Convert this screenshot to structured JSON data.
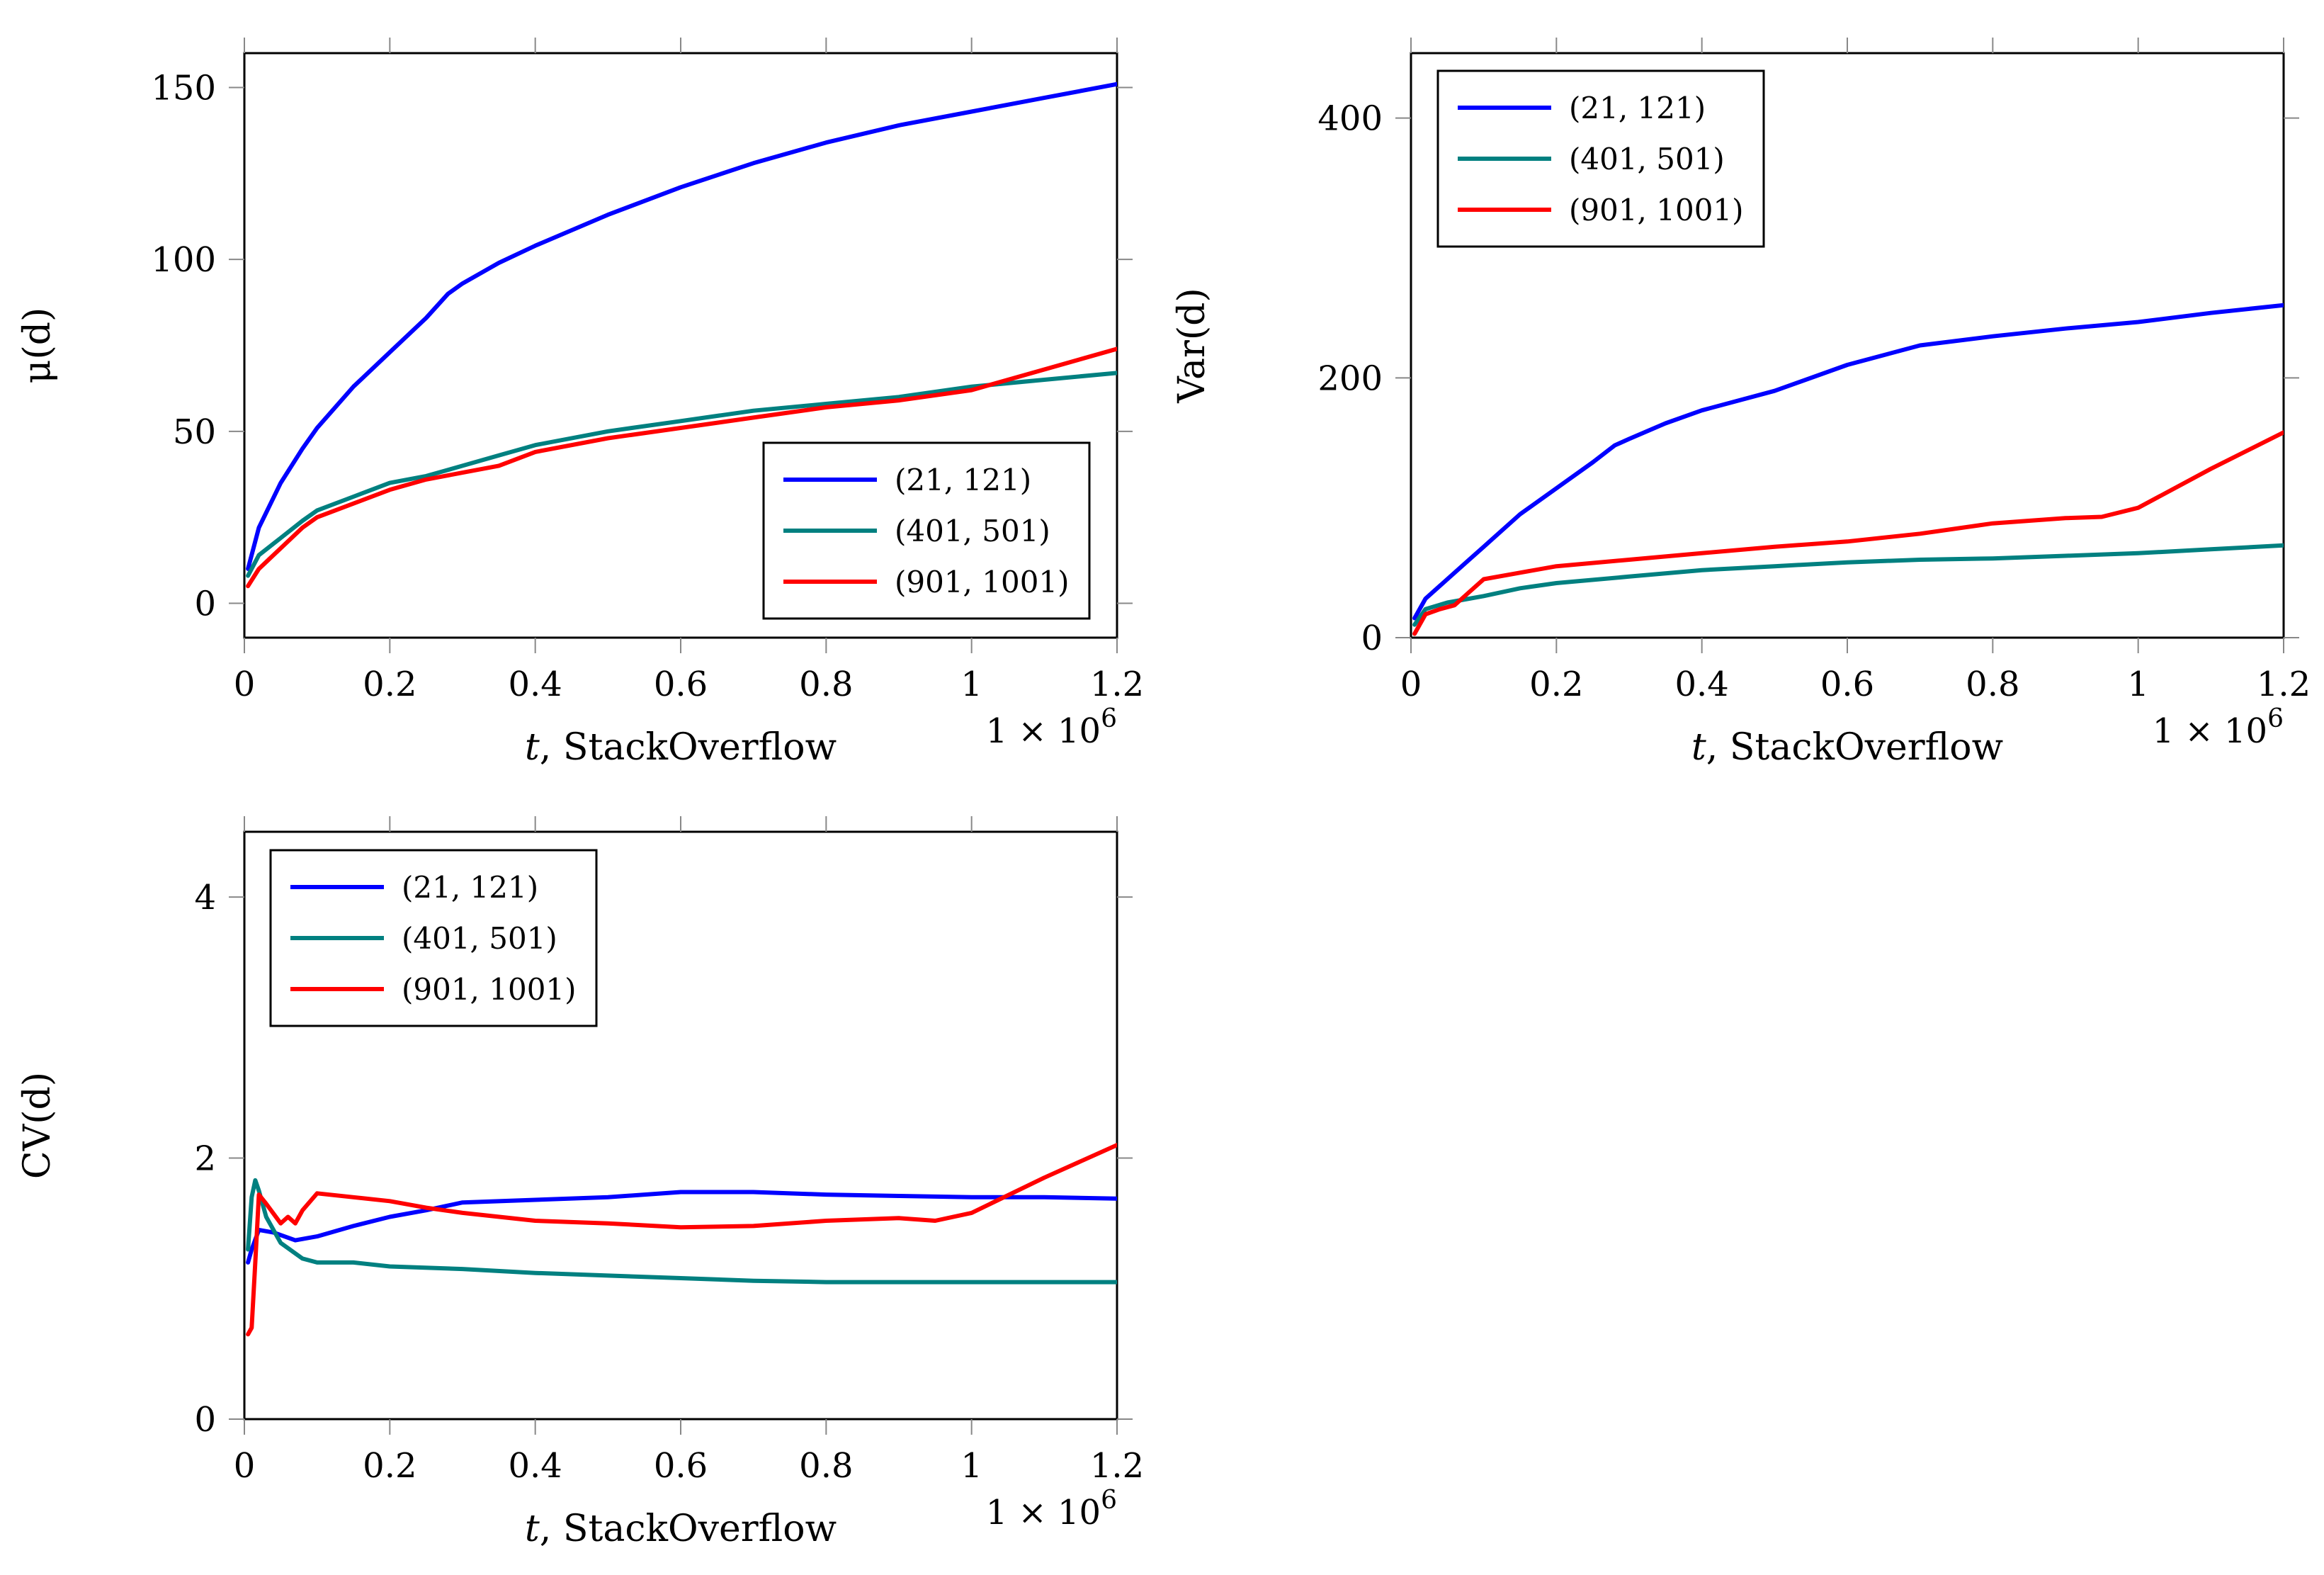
{
  "chart_data": [
    {
      "type": "line",
      "title": "",
      "xlabel": "t, StackOverflow",
      "ylabel": "μ(d)",
      "x_multiplier": "1 × 10^6",
      "xlim": [
        0,
        1.2
      ],
      "ylim": [
        -10,
        160
      ],
      "xticks": [
        0,
        0.2,
        0.4,
        0.6,
        0.8,
        1,
        1.2
      ],
      "xtick_labels": [
        "0",
        "0.2",
        "0.4",
        "0.6",
        "0.8",
        "1",
        "1.2"
      ],
      "yticks": [
        0,
        50,
        100,
        150
      ],
      "ytick_labels": [
        "0",
        "50",
        "100",
        "150"
      ],
      "legend_position": "bottom-right",
      "series": [
        {
          "name": "(21, 121)",
          "color": "#0000ff",
          "x": [
            0.005,
            0.02,
            0.05,
            0.08,
            0.1,
            0.15,
            0.2,
            0.25,
            0.28,
            0.3,
            0.35,
            0.4,
            0.5,
            0.6,
            0.7,
            0.8,
            0.9,
            1.0,
            1.1,
            1.2
          ],
          "y": [
            10,
            22,
            35,
            45,
            51,
            63,
            73,
            83,
            90,
            93,
            99,
            104,
            113,
            121,
            128,
            134,
            139,
            143,
            147,
            151
          ]
        },
        {
          "name": "(401, 501)",
          "color": "#008080",
          "x": [
            0.005,
            0.02,
            0.05,
            0.08,
            0.1,
            0.15,
            0.2,
            0.25,
            0.3,
            0.35,
            0.4,
            0.5,
            0.6,
            0.7,
            0.8,
            0.9,
            1.0,
            1.1,
            1.2
          ],
          "y": [
            8,
            14,
            19,
            24,
            27,
            31,
            35,
            37,
            40,
            43,
            46,
            50,
            53,
            56,
            58,
            60,
            63,
            65,
            67
          ]
        },
        {
          "name": "(901, 1001)",
          "color": "#ff0000",
          "x": [
            0.005,
            0.02,
            0.05,
            0.08,
            0.1,
            0.15,
            0.2,
            0.25,
            0.3,
            0.35,
            0.4,
            0.5,
            0.6,
            0.7,
            0.8,
            0.9,
            1.0,
            1.1,
            1.2
          ],
          "y": [
            5,
            10,
            16,
            22,
            25,
            29,
            33,
            36,
            38,
            40,
            44,
            48,
            51,
            54,
            57,
            59,
            62,
            68,
            74
          ]
        }
      ]
    },
    {
      "type": "line",
      "title": "",
      "xlabel": "t, StackOverflow",
      "ylabel": "Var(d)",
      "x_multiplier": "1 × 10^6",
      "xlim": [
        0,
        1.2
      ],
      "ylim": [
        0,
        450
      ],
      "xticks": [
        0,
        0.2,
        0.4,
        0.6,
        0.8,
        1,
        1.2
      ],
      "xtick_labels": [
        "0",
        "0.2",
        "0.4",
        "0.6",
        "0.8",
        "1",
        "1.2"
      ],
      "yticks": [
        0,
        200,
        400
      ],
      "ytick_labels": [
        "0",
        "200",
        "400"
      ],
      "legend_position": "top-left",
      "series": [
        {
          "name": "(21, 121)",
          "color": "#0000ff",
          "x": [
            0.005,
            0.02,
            0.05,
            0.08,
            0.1,
            0.15,
            0.2,
            0.25,
            0.28,
            0.3,
            0.35,
            0.4,
            0.5,
            0.6,
            0.7,
            0.8,
            0.9,
            1.0,
            1.1,
            1.2
          ],
          "y": [
            15,
            30,
            45,
            60,
            70,
            95,
            115,
            135,
            148,
            153,
            165,
            175,
            190,
            210,
            225,
            232,
            238,
            243,
            250,
            256
          ]
        },
        {
          "name": "(401, 501)",
          "color": "#008080",
          "x": [
            0.005,
            0.02,
            0.05,
            0.08,
            0.1,
            0.15,
            0.2,
            0.3,
            0.4,
            0.5,
            0.6,
            0.7,
            0.8,
            0.9,
            1.0,
            1.1,
            1.2
          ],
          "y": [
            10,
            22,
            27,
            30,
            32,
            38,
            42,
            47,
            52,
            55,
            58,
            60,
            61,
            63,
            65,
            68,
            71
          ]
        },
        {
          "name": "(901, 1001)",
          "color": "#ff0000",
          "x": [
            0.005,
            0.02,
            0.04,
            0.06,
            0.08,
            0.1,
            0.15,
            0.2,
            0.3,
            0.4,
            0.5,
            0.6,
            0.7,
            0.8,
            0.9,
            0.95,
            1.0,
            1.1,
            1.2
          ],
          "y": [
            3,
            18,
            22,
            25,
            35,
            45,
            50,
            55,
            60,
            65,
            70,
            74,
            80,
            88,
            92,
            93,
            100,
            130,
            158
          ]
        }
      ]
    },
    {
      "type": "line",
      "title": "",
      "xlabel": "t, StackOverflow",
      "ylabel": "CV(d)",
      "x_multiplier": "1 × 10^6",
      "xlim": [
        0,
        1.2
      ],
      "ylim": [
        0,
        4.5
      ],
      "xticks": [
        0,
        0.2,
        0.4,
        0.6,
        0.8,
        1,
        1.2
      ],
      "xtick_labels": [
        "0",
        "0.2",
        "0.4",
        "0.6",
        "0.8",
        "1",
        "1.2"
      ],
      "yticks": [
        0,
        2,
        4
      ],
      "ytick_labels": [
        "0",
        "2",
        "4"
      ],
      "legend_position": "top-left",
      "series": [
        {
          "name": "(21, 121)",
          "color": "#0000ff",
          "x": [
            0.005,
            0.01,
            0.02,
            0.04,
            0.07,
            0.1,
            0.15,
            0.2,
            0.25,
            0.3,
            0.4,
            0.5,
            0.6,
            0.7,
            0.8,
            0.9,
            1.0,
            1.1,
            1.2
          ],
          "y": [
            1.2,
            1.3,
            1.45,
            1.43,
            1.37,
            1.4,
            1.48,
            1.55,
            1.6,
            1.66,
            1.68,
            1.7,
            1.74,
            1.74,
            1.72,
            1.71,
            1.7,
            1.7,
            1.69
          ]
        },
        {
          "name": "(401, 501)",
          "color": "#008080",
          "x": [
            0.005,
            0.01,
            0.015,
            0.02,
            0.03,
            0.05,
            0.08,
            0.1,
            0.15,
            0.2,
            0.3,
            0.4,
            0.5,
            0.6,
            0.7,
            0.8,
            0.9,
            1.0,
            1.1,
            1.2
          ],
          "y": [
            1.3,
            1.7,
            1.83,
            1.75,
            1.55,
            1.35,
            1.23,
            1.2,
            1.2,
            1.17,
            1.15,
            1.12,
            1.1,
            1.08,
            1.06,
            1.05,
            1.05,
            1.05,
            1.05,
            1.05
          ]
        },
        {
          "name": "(901, 1001)",
          "color": "#ff0000",
          "x": [
            0.005,
            0.01,
            0.015,
            0.02,
            0.03,
            0.05,
            0.06,
            0.07,
            0.08,
            0.1,
            0.15,
            0.2,
            0.25,
            0.3,
            0.4,
            0.5,
            0.6,
            0.7,
            0.8,
            0.9,
            0.95,
            1.0,
            1.1,
            1.2
          ],
          "y": [
            0.65,
            0.7,
            1.2,
            1.72,
            1.65,
            1.5,
            1.55,
            1.5,
            1.6,
            1.73,
            1.7,
            1.67,
            1.62,
            1.58,
            1.52,
            1.5,
            1.47,
            1.48,
            1.52,
            1.54,
            1.52,
            1.58,
            1.85,
            2.1
          ]
        }
      ]
    }
  ]
}
